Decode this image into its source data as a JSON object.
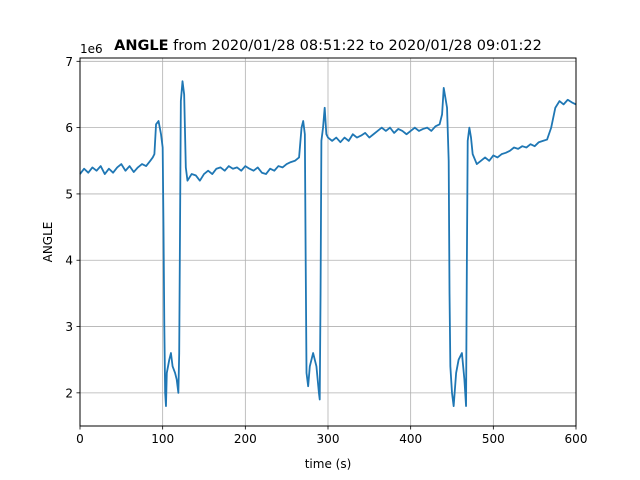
{
  "chart_data": {
    "type": "line",
    "title_bold": "ANGLE",
    "title_rest": " from 2020/01/28 08:51:22 to 2020/01/28 09:01:22",
    "xlabel": "time (s)",
    "ylabel": "ANGLE",
    "offset_label": "1e6",
    "xlim": [
      0,
      600
    ],
    "ylim": [
      1.5,
      7.05
    ],
    "xticks": [
      0,
      100,
      200,
      300,
      400,
      500,
      600
    ],
    "yticks": [
      2,
      3,
      4,
      5,
      6,
      7
    ],
    "grid": true,
    "series": [
      {
        "color": "#1f77b4",
        "points": [
          [
            0,
            5.3
          ],
          [
            5,
            5.38
          ],
          [
            10,
            5.32
          ],
          [
            15,
            5.4
          ],
          [
            20,
            5.35
          ],
          [
            25,
            5.42
          ],
          [
            30,
            5.3
          ],
          [
            35,
            5.38
          ],
          [
            40,
            5.32
          ],
          [
            45,
            5.4
          ],
          [
            50,
            5.45
          ],
          [
            55,
            5.35
          ],
          [
            60,
            5.42
          ],
          [
            65,
            5.33
          ],
          [
            70,
            5.4
          ],
          [
            75,
            5.45
          ],
          [
            80,
            5.42
          ],
          [
            85,
            5.5
          ],
          [
            88,
            5.55
          ],
          [
            90,
            5.6
          ],
          [
            92,
            6.05
          ],
          [
            95,
            6.1
          ],
          [
            98,
            5.9
          ],
          [
            100,
            5.7
          ],
          [
            101,
            4.5
          ],
          [
            102,
            3.0
          ],
          [
            103,
            2.0
          ],
          [
            104,
            1.8
          ],
          [
            105,
            2.3
          ],
          [
            108,
            2.5
          ],
          [
            110,
            2.6
          ],
          [
            112,
            2.4
          ],
          [
            115,
            2.3
          ],
          [
            117,
            2.2
          ],
          [
            118,
            2.1
          ],
          [
            119,
            2.0
          ],
          [
            120,
            2.6
          ],
          [
            121,
            4.5
          ],
          [
            122,
            6.4
          ],
          [
            124,
            6.7
          ],
          [
            126,
            6.5
          ],
          [
            128,
            5.4
          ],
          [
            130,
            5.2
          ],
          [
            135,
            5.3
          ],
          [
            140,
            5.28
          ],
          [
            145,
            5.2
          ],
          [
            150,
            5.3
          ],
          [
            155,
            5.35
          ],
          [
            160,
            5.3
          ],
          [
            165,
            5.38
          ],
          [
            170,
            5.4
          ],
          [
            175,
            5.35
          ],
          [
            180,
            5.42
          ],
          [
            185,
            5.38
          ],
          [
            190,
            5.4
          ],
          [
            195,
            5.35
          ],
          [
            200,
            5.42
          ],
          [
            205,
            5.38
          ],
          [
            210,
            5.35
          ],
          [
            215,
            5.4
          ],
          [
            220,
            5.32
          ],
          [
            225,
            5.3
          ],
          [
            230,
            5.38
          ],
          [
            235,
            5.35
          ],
          [
            240,
            5.42
          ],
          [
            245,
            5.4
          ],
          [
            250,
            5.45
          ],
          [
            255,
            5.48
          ],
          [
            260,
            5.5
          ],
          [
            265,
            5.55
          ],
          [
            268,
            6.0
          ],
          [
            270,
            6.1
          ],
          [
            272,
            5.9
          ],
          [
            273,
            4.0
          ],
          [
            274,
            2.3
          ],
          [
            276,
            2.1
          ],
          [
            278,
            2.4
          ],
          [
            282,
            2.6
          ],
          [
            286,
            2.4
          ],
          [
            289,
            2.0
          ],
          [
            290,
            1.9
          ],
          [
            291,
            3.5
          ],
          [
            292,
            5.8
          ],
          [
            294,
            6.0
          ],
          [
            296,
            6.3
          ],
          [
            298,
            5.9
          ],
          [
            300,
            5.85
          ],
          [
            305,
            5.8
          ],
          [
            310,
            5.85
          ],
          [
            315,
            5.78
          ],
          [
            320,
            5.85
          ],
          [
            325,
            5.8
          ],
          [
            330,
            5.9
          ],
          [
            335,
            5.85
          ],
          [
            340,
            5.88
          ],
          [
            345,
            5.92
          ],
          [
            350,
            5.85
          ],
          [
            355,
            5.9
          ],
          [
            360,
            5.95
          ],
          [
            365,
            6.0
          ],
          [
            370,
            5.95
          ],
          [
            375,
            6.0
          ],
          [
            380,
            5.92
          ],
          [
            385,
            5.98
          ],
          [
            390,
            5.95
          ],
          [
            395,
            5.9
          ],
          [
            400,
            5.95
          ],
          [
            405,
            6.0
          ],
          [
            410,
            5.95
          ],
          [
            415,
            5.98
          ],
          [
            420,
            6.0
          ],
          [
            425,
            5.95
          ],
          [
            430,
            6.02
          ],
          [
            435,
            6.05
          ],
          [
            438,
            6.2
          ],
          [
            440,
            6.6
          ],
          [
            442,
            6.45
          ],
          [
            444,
            6.3
          ],
          [
            446,
            5.5
          ],
          [
            447,
            3.5
          ],
          [
            448,
            2.4
          ],
          [
            450,
            2.0
          ],
          [
            452,
            1.8
          ],
          [
            455,
            2.3
          ],
          [
            458,
            2.5
          ],
          [
            462,
            2.6
          ],
          [
            465,
            2.2
          ],
          [
            467,
            1.8
          ],
          [
            468,
            4.0
          ],
          [
            469,
            5.8
          ],
          [
            471,
            6.0
          ],
          [
            473,
            5.85
          ],
          [
            475,
            5.6
          ],
          [
            480,
            5.45
          ],
          [
            485,
            5.5
          ],
          [
            490,
            5.55
          ],
          [
            495,
            5.5
          ],
          [
            500,
            5.58
          ],
          [
            505,
            5.55
          ],
          [
            510,
            5.6
          ],
          [
            515,
            5.62
          ],
          [
            520,
            5.65
          ],
          [
            525,
            5.7
          ],
          [
            530,
            5.68
          ],
          [
            535,
            5.72
          ],
          [
            540,
            5.7
          ],
          [
            545,
            5.75
          ],
          [
            550,
            5.72
          ],
          [
            555,
            5.78
          ],
          [
            560,
            5.8
          ],
          [
            565,
            5.82
          ],
          [
            570,
            6.0
          ],
          [
            575,
            6.3
          ],
          [
            580,
            6.4
          ],
          [
            585,
            6.35
          ],
          [
            590,
            6.42
          ],
          [
            595,
            6.38
          ],
          [
            600,
            6.35
          ]
        ]
      }
    ]
  }
}
